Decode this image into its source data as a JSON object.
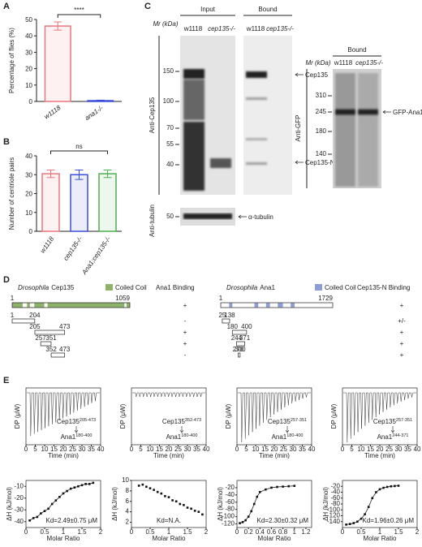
{
  "panel_labels": [
    "A",
    "B",
    "C",
    "D",
    "E"
  ],
  "chart_data": [
    {
      "type": "bar",
      "ylabel": "Percentage of flies (%)",
      "categories": [
        "w1118",
        "ana1-/-"
      ],
      "values": [
        46,
        0.5
      ],
      "errors": [
        2.5,
        0.3
      ],
      "colors": [
        "#e8777f",
        "#3b4fd8"
      ],
      "ylim": [
        0,
        50
      ],
      "yticks": [
        0,
        10,
        20,
        30,
        40,
        50
      ],
      "annotation": "****"
    },
    {
      "type": "bar",
      "ylabel": "Number of centriole pairs",
      "categories": [
        "w1118",
        "cep135-/-",
        "Ana1;cep135-/-"
      ],
      "values": [
        30.5,
        30,
        30.5
      ],
      "errors": [
        2,
        2.5,
        2
      ],
      "colors": [
        "#e8777f",
        "#3b4fd8",
        "#4caf50"
      ],
      "ylim": [
        0,
        40
      ],
      "yticks": [
        0,
        10,
        20,
        30,
        40
      ],
      "annotation": "ns"
    },
    {
      "type": "scatter",
      "ylabel": "ΔH (kJ/mol)",
      "xlabel": "Molar Ratio",
      "annotation": "Kd=2.49±0.75 μM",
      "fit": true,
      "xlim": [
        0,
        2
      ],
      "xticks": [
        0,
        0.5,
        1,
        1.5,
        2
      ],
      "ylim": [
        -45,
        -5
      ],
      "yticks": [
        -40,
        -30,
        -20,
        -10
      ],
      "x": [
        0.1,
        0.2,
        0.3,
        0.4,
        0.5,
        0.6,
        0.7,
        0.8,
        0.9,
        1.0,
        1.1,
        1.2,
        1.3,
        1.4,
        1.5,
        1.6,
        1.7,
        1.8
      ],
      "values": [
        -39,
        -37,
        -36,
        -33,
        -31,
        -29,
        -25,
        -22,
        -19,
        -16,
        -14,
        -12,
        -11,
        -10,
        -9,
        -8,
        -8,
        -7
      ]
    },
    {
      "type": "scatter",
      "ylabel": "ΔH (kJ/mol)",
      "xlabel": "Molar Ratio",
      "annotation": "Kd=N.A.",
      "fit": false,
      "xlim": [
        0,
        2
      ],
      "xticks": [
        0,
        0.5,
        1,
        1.5,
        2
      ],
      "ylim": [
        1,
        10
      ],
      "yticks": [
        2,
        4,
        6,
        8,
        10
      ],
      "x": [
        0.2,
        0.3,
        0.4,
        0.5,
        0.6,
        0.7,
        0.8,
        0.9,
        1.0,
        1.1,
        1.2,
        1.3,
        1.4,
        1.5,
        1.6,
        1.7,
        1.8,
        1.9
      ],
      "values": [
        9,
        9.2,
        8.8,
        8.5,
        8.2,
        7.8,
        7.5,
        7,
        6.8,
        6.2,
        6,
        5.5,
        5.3,
        4.8,
        4.6,
        4.2,
        4,
        3.5
      ]
    },
    {
      "type": "scatter",
      "ylabel": "ΔH (kJ/mol)",
      "xlabel": "Molar Ratio",
      "annotation": "Kd=2.30±0.32 μM",
      "fit": true,
      "xlim": [
        0,
        1.3
      ],
      "xticks": [
        0,
        0.2,
        0.4,
        0.6,
        0.8,
        1,
        1.2
      ],
      "ylim": [
        -130,
        0
      ],
      "yticks": [
        -120,
        -100,
        -80,
        -60,
        -40,
        -20
      ],
      "x": [
        0.05,
        0.1,
        0.15,
        0.2,
        0.25,
        0.3,
        0.35,
        0.4,
        0.5,
        0.6,
        0.7,
        0.8,
        0.9,
        1.0
      ],
      "values": [
        -118,
        -115,
        -110,
        -100,
        -85,
        -65,
        -45,
        -32,
        -25,
        -20,
        -18,
        -17,
        -16,
        -15
      ]
    },
    {
      "type": "scatter",
      "ylabel": "ΔH (kJ/mol)",
      "xlabel": "Molar Ratio",
      "annotation": "Kd=1.96±0.26 μM",
      "fit": true,
      "xlim": [
        0,
        2
      ],
      "xticks": [
        0,
        0.5,
        1,
        1.5,
        2
      ],
      "ylim": [
        -160,
        0
      ],
      "yticks": [
        -140,
        -120,
        -100,
        -80,
        -60,
        -40,
        -20
      ],
      "x": [
        0.1,
        0.2,
        0.3,
        0.4,
        0.5,
        0.6,
        0.7,
        0.8,
        0.9,
        1.0,
        1.1,
        1.2,
        1.3,
        1.4,
        1.5
      ],
      "values": [
        -150,
        -148,
        -145,
        -140,
        -130,
        -115,
        -90,
        -60,
        -40,
        -30,
        -25,
        -22,
        -20,
        -19,
        -18
      ]
    }
  ],
  "itc_raw": [
    {
      "ylabel": "DP (μW)",
      "xlabel": "Time (min)",
      "xlim": [
        0,
        40
      ],
      "xticks": [
        0,
        5,
        10,
        15,
        20,
        25,
        30,
        35,
        40
      ],
      "titrant": [
        "Cep135",
        "205-473"
      ],
      "cell": [
        "Ana1",
        "180-400"
      ]
    },
    {
      "ylabel": "DP (μW)",
      "xlabel": "Time (min)",
      "xlim": [
        0,
        40
      ],
      "xticks": [
        0,
        5,
        10,
        15,
        20,
        25,
        30,
        35,
        40
      ],
      "titrant": [
        "Cep135",
        "352-473"
      ],
      "cell": [
        "Ana1",
        "180-400"
      ]
    },
    {
      "ylabel": "DP (μW)",
      "xlabel": "Time (min)",
      "xlim": [
        0,
        40
      ],
      "xticks": [
        0,
        5,
        10,
        15,
        20,
        25,
        30,
        35,
        40
      ],
      "titrant": [
        "Cep135",
        "257-351"
      ],
      "cell": [
        "Ana1",
        "180-400"
      ]
    },
    {
      "ylabel": "DP (μW)",
      "xlabel": "Time (min)",
      "xlim": [
        0,
        40
      ],
      "xticks": [
        0,
        5,
        10,
        15,
        20,
        25,
        30,
        35,
        40
      ],
      "titrant": [
        "Cep135",
        "257-351"
      ],
      "cell": [
        "Ana1",
        "244-371"
      ]
    }
  ],
  "blots": {
    "input": "Input",
    "bound": "Bound",
    "mr": "Mr (kDa)",
    "lanes": [
      "w1118",
      "cep135-/-"
    ],
    "cep135_markers": [
      150,
      100,
      70,
      55,
      40
    ],
    "tubulin_marker": 50,
    "arrows": [
      "Cep135",
      "Cep135-N*",
      "α-tubulin"
    ],
    "antibodies": [
      "Anti-Cep135",
      "Anti-tubulin",
      "Anti-GFP"
    ],
    "gfp_bound": "Bound",
    "gfp_markers": [
      310,
      245,
      180,
      140
    ],
    "gfp_arrow": "GFP-Ana1"
  },
  "domains": [
    {
      "species": "Drosophila",
      "protein": "Cep135",
      "legend": "Coiled Coil",
      "column": "Ana1 Binding",
      "start": 1,
      "length": 1059,
      "fragments": [
        [
          1,
          204
        ],
        [
          205,
          473
        ],
        [
          257,
          351
        ],
        [
          352,
          473
        ]
      ],
      "results": [
        "+",
        "-",
        "+",
        "+",
        "-"
      ]
    },
    {
      "species": "Drosophila",
      "protein": "Ana1",
      "legend": "Coiled Coil",
      "column": "Cep135-N Binding",
      "start": 1,
      "length": 1729,
      "fragments": [
        [
          25,
          138
        ],
        [
          180,
          400
        ],
        [
          244,
          371
        ],
        [
          270,
          300
        ]
      ],
      "results": [
        "+",
        "+/-",
        "+",
        "+",
        "+"
      ]
    }
  ]
}
